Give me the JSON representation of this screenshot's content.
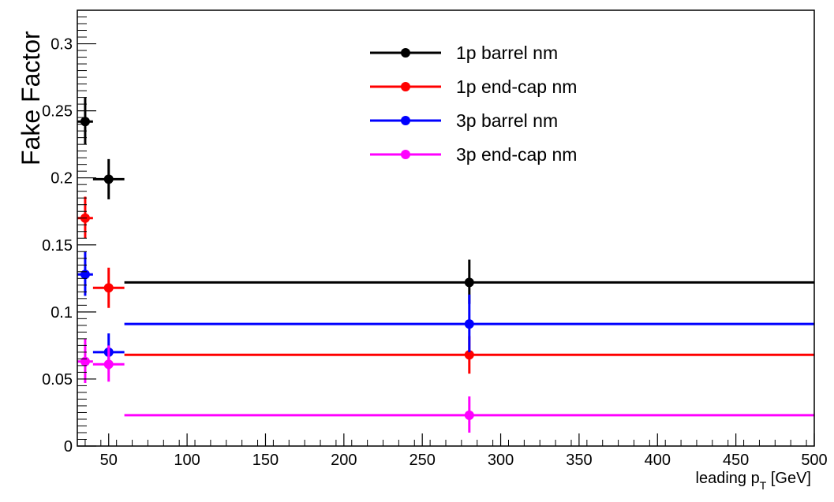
{
  "chart_data": {
    "type": "scatter",
    "title": "",
    "xlabel_main": "leading p",
    "xlabel_sub": "T",
    "xlabel_unit": " [GeV]",
    "ylabel": "Fake Factor",
    "xlim": [
      30,
      500
    ],
    "ylim": [
      0,
      0.325
    ],
    "x_ticks": [
      50,
      100,
      150,
      200,
      250,
      300,
      350,
      400,
      450,
      500
    ],
    "x_tick_labels": [
      "50",
      "100",
      "150",
      "200",
      "250",
      "300",
      "350",
      "400",
      "450",
      "500"
    ],
    "y_ticks": [
      0,
      0.05,
      0.1,
      0.15,
      0.2,
      0.25,
      0.3
    ],
    "y_tick_labels": [
      "0",
      "0.05",
      "0.1",
      "0.15",
      "0.2",
      "0.25",
      "0.3"
    ],
    "grid": false,
    "legend_position": "top-center",
    "series": [
      {
        "name": "1p barrel nm",
        "color": "#000000",
        "points": [
          {
            "x": 35,
            "xlo": 30,
            "xhi": 40,
            "y": 0.242,
            "ylo": 0.225,
            "yhi": 0.26
          },
          {
            "x": 50,
            "xlo": 40,
            "xhi": 60,
            "y": 0.199,
            "ylo": 0.184,
            "yhi": 0.214
          },
          {
            "x": 280,
            "xlo": 60,
            "xhi": 500,
            "y": 0.122,
            "ylo": 0.106,
            "yhi": 0.139
          }
        ]
      },
      {
        "name": "1p end-cap nm",
        "color": "#ff0000",
        "points": [
          {
            "x": 35,
            "xlo": 30,
            "xhi": 40,
            "y": 0.17,
            "ylo": 0.155,
            "yhi": 0.186
          },
          {
            "x": 50,
            "xlo": 40,
            "xhi": 60,
            "y": 0.118,
            "ylo": 0.103,
            "yhi": 0.133
          },
          {
            "x": 280,
            "xlo": 60,
            "xhi": 500,
            "y": 0.068,
            "ylo": 0.054,
            "yhi": 0.082
          }
        ]
      },
      {
        "name": "3p barrel nm",
        "color": "#0000ff",
        "points": [
          {
            "x": 35,
            "xlo": 30,
            "xhi": 40,
            "y": 0.128,
            "ylo": 0.112,
            "yhi": 0.145
          },
          {
            "x": 50,
            "xlo": 40,
            "xhi": 60,
            "y": 0.07,
            "ylo": 0.057,
            "yhi": 0.084
          },
          {
            "x": 280,
            "xlo": 60,
            "xhi": 500,
            "y": 0.091,
            "ylo": 0.07,
            "yhi": 0.113
          }
        ]
      },
      {
        "name": "3p end-cap nm",
        "color": "#ff00ff",
        "points": [
          {
            "x": 35,
            "xlo": 30,
            "xhi": 40,
            "y": 0.063,
            "ylo": 0.047,
            "yhi": 0.08
          },
          {
            "x": 50,
            "xlo": 40,
            "xhi": 60,
            "y": 0.061,
            "ylo": 0.048,
            "yhi": 0.075
          },
          {
            "x": 280,
            "xlo": 60,
            "xhi": 500,
            "y": 0.023,
            "ylo": 0.01,
            "yhi": 0.037
          }
        ]
      }
    ]
  }
}
